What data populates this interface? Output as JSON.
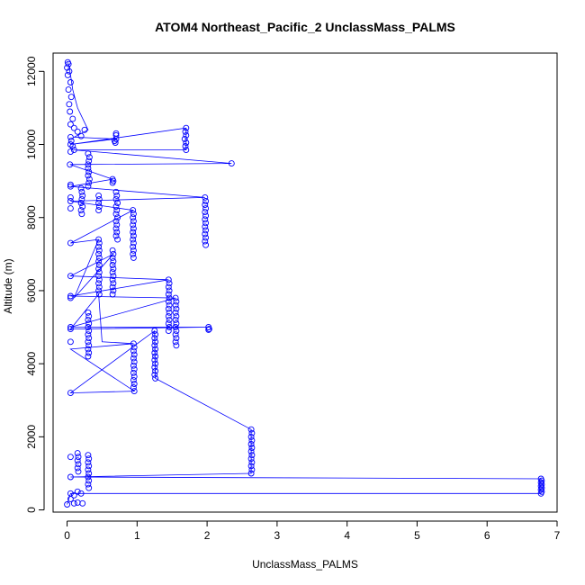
{
  "chart_data": {
    "type": "scatter",
    "title": "ATOM4 Northeast_Pacific_2 UnclassMass_PALMS",
    "xlabel": "UnclassMass_PALMS",
    "ylabel": "Altitude (m)",
    "xlim": [
      -0.2,
      7.0
    ],
    "ylim": [
      -60,
      12500
    ],
    "x_ticks": [
      0,
      1,
      2,
      3,
      4,
      5,
      6,
      7
    ],
    "y_ticks": [
      0,
      2000,
      4000,
      6000,
      8000,
      10000,
      12000
    ],
    "grid": false,
    "legend": "none",
    "color": "#0000ff",
    "marker": "open-circle",
    "connected": true,
    "points": [
      [
        0.01,
        12250
      ],
      [
        0.02,
        12200
      ],
      [
        0.0,
        12100
      ],
      [
        0.03,
        12000
      ],
      [
        0.01,
        11900
      ],
      [
        0.05,
        11700
      ],
      [
        0.02,
        11500
      ],
      [
        0.06,
        11300
      ],
      [
        0.03,
        11100
      ],
      [
        0.04,
        10900
      ],
      [
        0.08,
        10700
      ],
      [
        0.05,
        10550
      ],
      [
        0.1,
        10450
      ],
      [
        0.25,
        10400
      ],
      [
        0.15,
        10350
      ],
      [
        0.7,
        10300
      ],
      [
        0.7,
        10250
      ],
      [
        0.2,
        10230
      ],
      [
        0.05,
        10200
      ],
      [
        0.06,
        10100
      ],
      [
        0.7,
        10150
      ],
      [
        0.68,
        10100
      ],
      [
        0.69,
        10050
      ],
      [
        0.05,
        10000
      ],
      [
        0.08,
        9950
      ],
      [
        1.7,
        10450
      ],
      [
        1.69,
        10350
      ],
      [
        1.7,
        10250
      ],
      [
        1.68,
        10150
      ],
      [
        1.7,
        10050
      ],
      [
        1.69,
        9950
      ],
      [
        1.7,
        9850
      ],
      [
        0.1,
        9850
      ],
      [
        0.05,
        9800
      ],
      [
        0.3,
        9750
      ],
      [
        0.32,
        9650
      ],
      [
        0.31,
        9550
      ],
      [
        0.3,
        9450
      ],
      [
        2.35,
        9480
      ],
      [
        0.04,
        9450
      ],
      [
        0.3,
        9350
      ],
      [
        0.31,
        9250
      ],
      [
        0.3,
        9150
      ],
      [
        0.32,
        9050
      ],
      [
        0.31,
        8950
      ],
      [
        0.3,
        8850
      ],
      [
        0.05,
        8900
      ],
      [
        0.65,
        9050
      ],
      [
        0.66,
        9000
      ],
      [
        0.65,
        8950
      ],
      [
        0.05,
        8850
      ],
      [
        0.2,
        8800
      ],
      [
        0.21,
        8700
      ],
      [
        0.22,
        8600
      ],
      [
        0.21,
        8500
      ],
      [
        0.2,
        8400
      ],
      [
        0.22,
        8300
      ],
      [
        0.2,
        8200
      ],
      [
        0.21,
        8100
      ],
      [
        0.05,
        8450
      ],
      [
        0.7,
        8700
      ],
      [
        0.71,
        8600
      ],
      [
        0.7,
        8500
      ],
      [
        0.72,
        8400
      ],
      [
        0.7,
        8300
      ],
      [
        0.71,
        8200
      ],
      [
        0.7,
        8100
      ],
      [
        0.72,
        8000
      ],
      [
        0.7,
        7900
      ],
      [
        0.71,
        7800
      ],
      [
        0.7,
        7700
      ],
      [
        0.71,
        7600
      ],
      [
        0.7,
        7500
      ],
      [
        0.72,
        7400
      ],
      [
        0.05,
        8550
      ],
      [
        1.97,
        8550
      ],
      [
        1.98,
        8450
      ],
      [
        1.97,
        8350
      ],
      [
        1.98,
        8250
      ],
      [
        1.97,
        8150
      ],
      [
        1.98,
        8050
      ],
      [
        1.97,
        7950
      ],
      [
        1.98,
        7850
      ],
      [
        1.97,
        7750
      ],
      [
        1.98,
        7650
      ],
      [
        1.97,
        7550
      ],
      [
        1.98,
        7450
      ],
      [
        1.97,
        7350
      ],
      [
        1.98,
        7250
      ],
      [
        0.45,
        8600
      ],
      [
        0.46,
        8500
      ],
      [
        0.45,
        8400
      ],
      [
        0.46,
        8300
      ],
      [
        0.45,
        8200
      ],
      [
        0.05,
        8250
      ],
      [
        0.94,
        8200
      ],
      [
        0.95,
        8100
      ],
      [
        0.94,
        8000
      ],
      [
        0.95,
        7900
      ],
      [
        0.94,
        7800
      ],
      [
        0.95,
        7700
      ],
      [
        0.94,
        7600
      ],
      [
        0.95,
        7500
      ],
      [
        0.94,
        7400
      ],
      [
        0.95,
        7300
      ],
      [
        0.94,
        7200
      ],
      [
        0.95,
        7100
      ],
      [
        0.94,
        7000
      ],
      [
        0.95,
        6900
      ],
      [
        0.05,
        7300
      ],
      [
        0.45,
        7400
      ],
      [
        0.46,
        7300
      ],
      [
        0.45,
        7200
      ],
      [
        0.46,
        7100
      ],
      [
        0.45,
        7000
      ],
      [
        0.46,
        6900
      ],
      [
        0.45,
        6800
      ],
      [
        0.46,
        6700
      ],
      [
        0.45,
        6600
      ],
      [
        0.46,
        6500
      ],
      [
        0.45,
        6400
      ],
      [
        0.46,
        6300
      ],
      [
        0.45,
        6200
      ],
      [
        0.46,
        6100
      ],
      [
        0.45,
        6000
      ],
      [
        0.46,
        5900
      ],
      [
        0.05,
        5800
      ],
      [
        0.65,
        7100
      ],
      [
        0.66,
        7000
      ],
      [
        0.65,
        6900
      ],
      [
        0.66,
        6800
      ],
      [
        0.65,
        6700
      ],
      [
        0.66,
        6600
      ],
      [
        0.65,
        6500
      ],
      [
        0.66,
        6400
      ],
      [
        0.65,
        6300
      ],
      [
        0.66,
        6200
      ],
      [
        0.65,
        6100
      ],
      [
        0.66,
        6000
      ],
      [
        0.65,
        5900
      ],
      [
        0.05,
        6400
      ],
      [
        1.45,
        6300
      ],
      [
        1.46,
        6200
      ],
      [
        1.45,
        6100
      ],
      [
        1.46,
        6000
      ],
      [
        1.45,
        5900
      ],
      [
        1.46,
        5800
      ],
      [
        1.45,
        5700
      ],
      [
        1.46,
        5600
      ],
      [
        1.45,
        5500
      ],
      [
        1.46,
        5400
      ],
      [
        1.45,
        5300
      ],
      [
        1.46,
        5200
      ],
      [
        1.45,
        5100
      ],
      [
        1.46,
        5000
      ],
      [
        1.45,
        4900
      ],
      [
        0.05,
        5850
      ],
      [
        1.55,
        5800
      ],
      [
        1.56,
        5700
      ],
      [
        1.55,
        5600
      ],
      [
        1.56,
        5500
      ],
      [
        1.55,
        5400
      ],
      [
        1.56,
        5300
      ],
      [
        1.55,
        5200
      ],
      [
        1.56,
        5100
      ],
      [
        1.55,
        5000
      ],
      [
        1.56,
        4900
      ],
      [
        1.55,
        4800
      ],
      [
        1.56,
        4700
      ],
      [
        1.55,
        4600
      ],
      [
        1.56,
        4500
      ],
      [
        0.05,
        5000
      ],
      [
        2.02,
        5000
      ],
      [
        2.03,
        4950
      ],
      [
        2.02,
        4930
      ],
      [
        0.05,
        4950
      ],
      [
        0.3,
        5400
      ],
      [
        0.31,
        5300
      ],
      [
        0.3,
        5200
      ],
      [
        0.31,
        5100
      ],
      [
        0.3,
        5000
      ],
      [
        0.31,
        4900
      ],
      [
        0.3,
        4800
      ],
      [
        0.31,
        4700
      ],
      [
        0.3,
        4600
      ],
      [
        0.31,
        4500
      ],
      [
        0.3,
        4400
      ],
      [
        0.31,
        4300
      ],
      [
        0.3,
        4200
      ],
      [
        0.05,
        4600
      ],
      [
        0.95,
        4550
      ],
      [
        0.96,
        4450
      ],
      [
        0.95,
        4350
      ],
      [
        0.96,
        4250
      ],
      [
        0.95,
        4150
      ],
      [
        0.96,
        4050
      ],
      [
        0.95,
        3950
      ],
      [
        0.96,
        3850
      ],
      [
        0.95,
        3750
      ],
      [
        0.96,
        3650
      ],
      [
        0.95,
        3550
      ],
      [
        0.96,
        3450
      ],
      [
        0.95,
        3350
      ],
      [
        0.96,
        3250
      ],
      [
        0.05,
        3200
      ],
      [
        1.25,
        4900
      ],
      [
        1.26,
        4800
      ],
      [
        1.25,
        4700
      ],
      [
        1.26,
        4600
      ],
      [
        1.25,
        4500
      ],
      [
        1.26,
        4400
      ],
      [
        1.25,
        4300
      ],
      [
        1.26,
        4200
      ],
      [
        1.25,
        4100
      ],
      [
        1.26,
        4000
      ],
      [
        1.25,
        3900
      ],
      [
        1.26,
        3800
      ],
      [
        1.25,
        3700
      ],
      [
        1.26,
        3600
      ],
      [
        2.63,
        2200
      ],
      [
        2.64,
        2100
      ],
      [
        2.63,
        2000
      ],
      [
        2.64,
        1900
      ],
      [
        2.63,
        1800
      ],
      [
        2.64,
        1700
      ],
      [
        2.63,
        1600
      ],
      [
        2.64,
        1500
      ],
      [
        2.63,
        1400
      ],
      [
        2.64,
        1300
      ],
      [
        2.63,
        1200
      ],
      [
        2.64,
        1100
      ],
      [
        2.63,
        1000
      ],
      [
        0.05,
        900
      ],
      [
        0.3,
        1500
      ],
      [
        0.31,
        1400
      ],
      [
        0.3,
        1300
      ],
      [
        0.31,
        1200
      ],
      [
        0.3,
        1100
      ],
      [
        0.31,
        1000
      ],
      [
        0.3,
        900
      ],
      [
        0.31,
        800
      ],
      [
        0.3,
        700
      ],
      [
        0.31,
        600
      ],
      [
        0.05,
        1450
      ],
      [
        0.15,
        1550
      ],
      [
        0.16,
        1450
      ],
      [
        0.15,
        1350
      ],
      [
        0.16,
        1250
      ],
      [
        0.15,
        1150
      ],
      [
        0.16,
        1050
      ],
      [
        6.77,
        850
      ],
      [
        6.78,
        800
      ],
      [
        6.77,
        750
      ],
      [
        6.78,
        700
      ],
      [
        6.77,
        650
      ],
      [
        6.78,
        600
      ],
      [
        6.77,
        550
      ],
      [
        6.78,
        500
      ],
      [
        6.77,
        450
      ],
      [
        0.05,
        450
      ],
      [
        0.15,
        500
      ],
      [
        0.2,
        450
      ],
      [
        0.1,
        400
      ],
      [
        0.05,
        300
      ],
      [
        0.15,
        200
      ],
      [
        0.22,
        180
      ],
      [
        0.1,
        180
      ],
      [
        0.0,
        150
      ]
    ],
    "trace": [
      [
        0.01,
        12250
      ],
      [
        0.03,
        12100
      ],
      [
        0.05,
        11900
      ],
      [
        0.08,
        11500
      ],
      [
        0.15,
        11000
      ],
      [
        0.3,
        10400
      ],
      [
        0.1,
        10200
      ],
      [
        0.7,
        10150
      ],
      [
        0.05,
        10000
      ],
      [
        1.7,
        10450
      ],
      [
        1.7,
        9850
      ],
      [
        0.1,
        9850
      ],
      [
        2.35,
        9480
      ],
      [
        0.04,
        9450
      ],
      [
        0.65,
        9050
      ],
      [
        0.05,
        8850
      ],
      [
        1.97,
        8550
      ],
      [
        0.05,
        8450
      ],
      [
        0.94,
        8200
      ],
      [
        0.05,
        7300
      ],
      [
        0.45,
        7400
      ],
      [
        0.1,
        5800
      ],
      [
        0.66,
        7000
      ],
      [
        0.05,
        6400
      ],
      [
        1.45,
        6300
      ],
      [
        0.05,
        5850
      ],
      [
        1.55,
        5800
      ],
      [
        0.05,
        5000
      ],
      [
        2.02,
        5000
      ],
      [
        0.05,
        4950
      ],
      [
        0.45,
        5900
      ],
      [
        0.5,
        4600
      ],
      [
        0.95,
        4550
      ],
      [
        0.05,
        4400
      ],
      [
        0.96,
        3250
      ],
      [
        0.05,
        3200
      ],
      [
        1.25,
        4900
      ],
      [
        1.26,
        3600
      ],
      [
        2.63,
        2200
      ],
      [
        2.63,
        1000
      ],
      [
        0.05,
        900
      ],
      [
        6.77,
        850
      ],
      [
        6.77,
        450
      ],
      [
        0.05,
        450
      ],
      [
        0.0,
        150
      ]
    ]
  }
}
